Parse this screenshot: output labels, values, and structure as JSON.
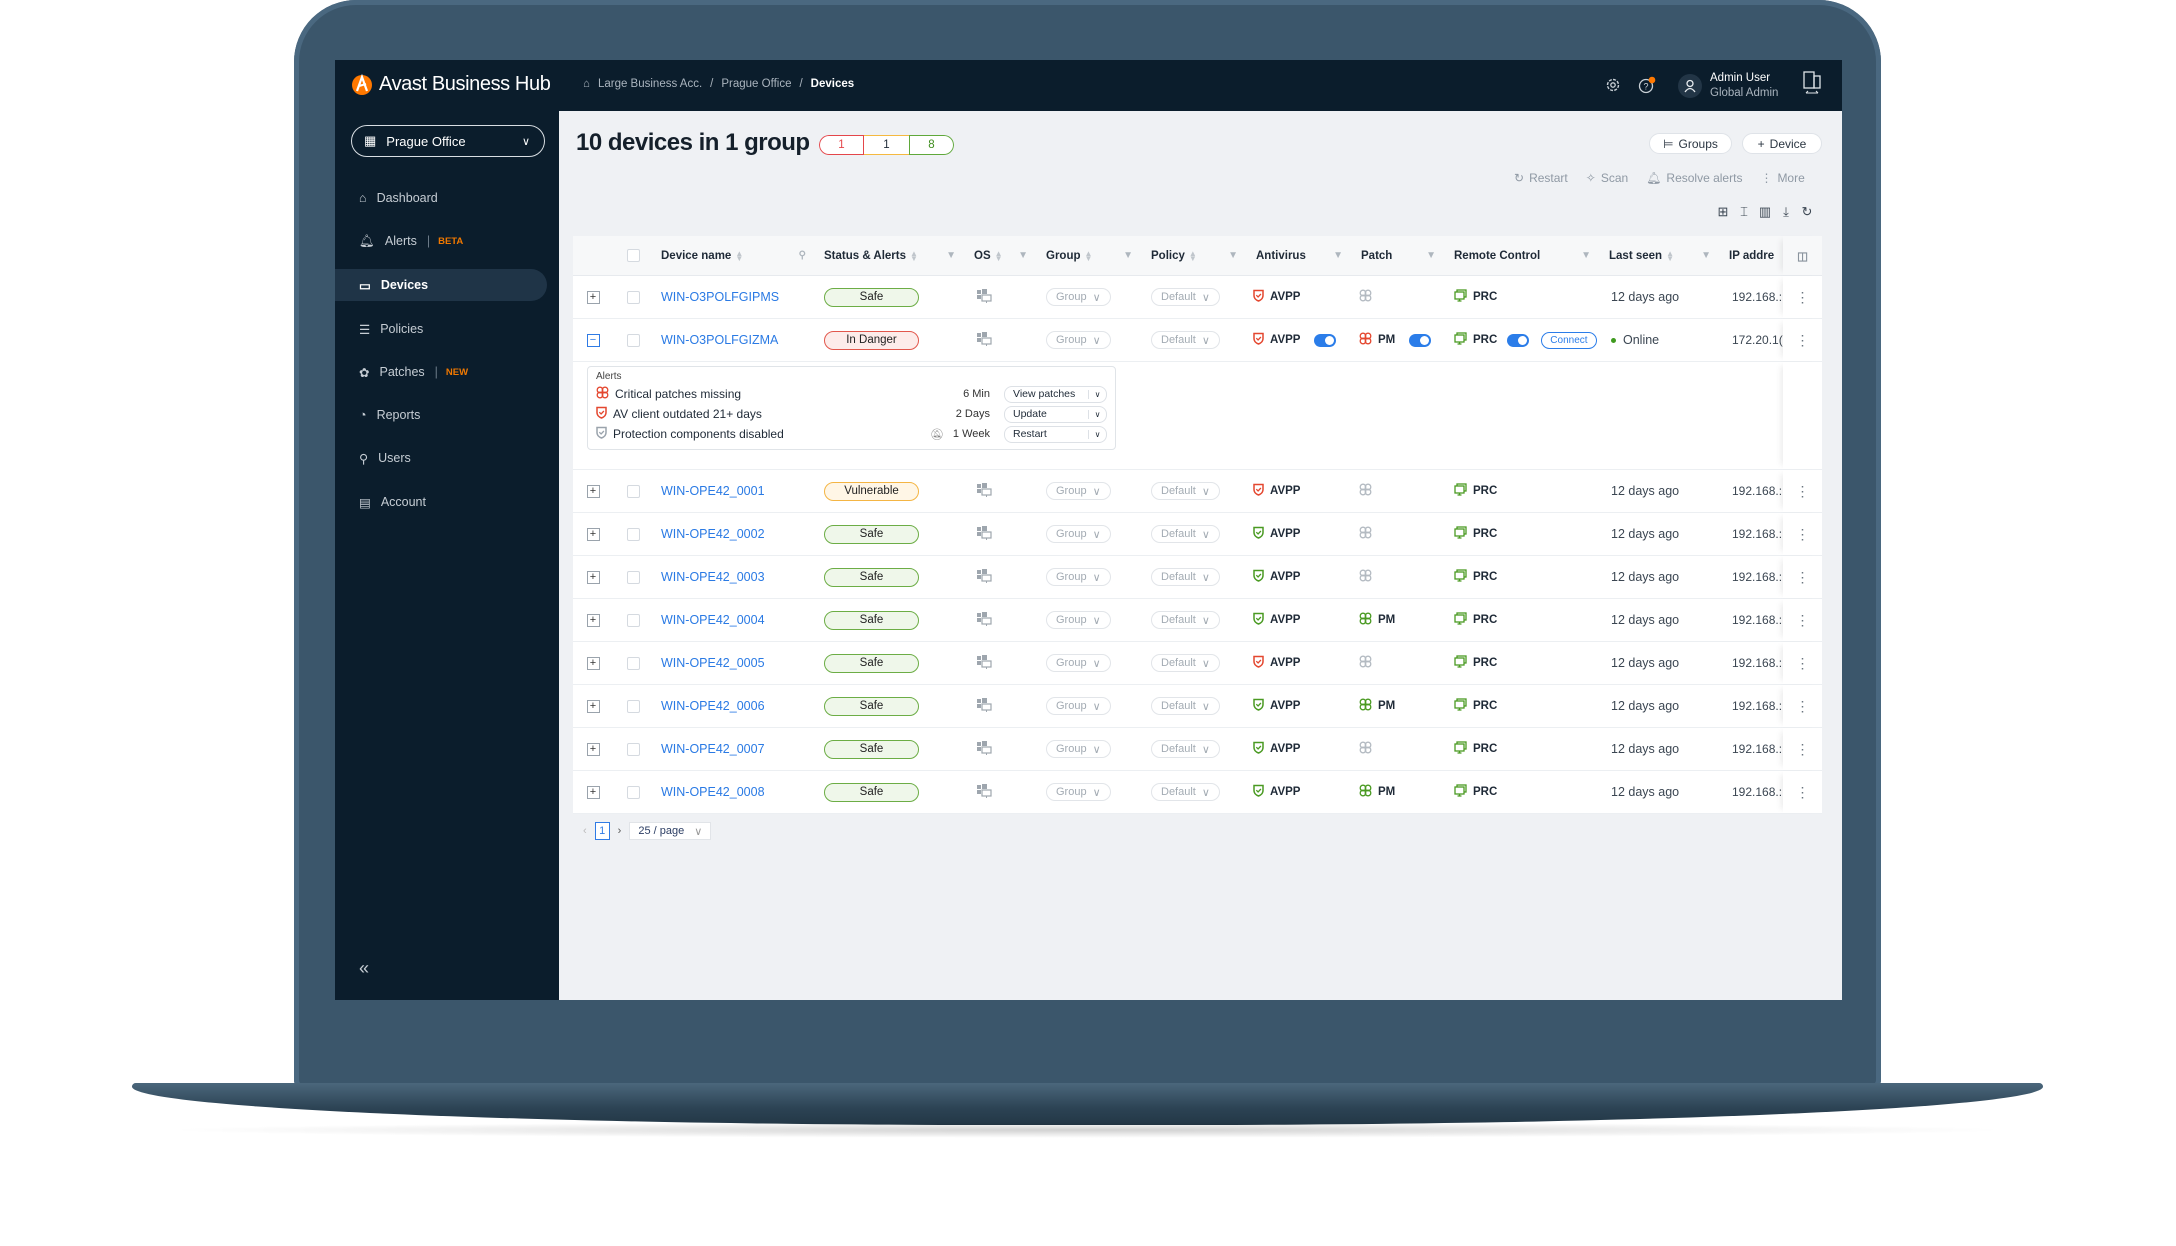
{
  "app": {
    "brand": "Avast Business Hub",
    "accent": "#ff7800"
  },
  "breadcrumb": [
    "Large Business Acc.",
    "Prague Office",
    "Devices"
  ],
  "user": {
    "name": "Admin User",
    "role": "Global Admin"
  },
  "sidebar": {
    "office": "Prague Office",
    "items": [
      {
        "label": "Dashboard",
        "icon": "home-icon"
      },
      {
        "label": "Alerts",
        "badge": "BETA",
        "icon": "bell-icon"
      },
      {
        "label": "Devices",
        "icon": "monitor-icon",
        "active": true
      },
      {
        "label": "Policies",
        "icon": "policies-icon"
      },
      {
        "label": "Patches",
        "badge": "NEW",
        "icon": "patch-icon"
      },
      {
        "label": "Reports",
        "icon": "pie-chart-icon"
      },
      {
        "label": "Users",
        "icon": "user-icon"
      },
      {
        "label": "Account",
        "icon": "account-icon"
      }
    ]
  },
  "header": {
    "title": "10 devices in 1 group",
    "counts": {
      "danger": "1",
      "vulnerable": "1",
      "safe": "8"
    }
  },
  "buttons": {
    "groups": "Groups",
    "device": "Device",
    "restart": "Restart",
    "scan": "Scan",
    "resolve": "Resolve alerts",
    "more": "More"
  },
  "columns": [
    "Device name",
    "Status & Alerts",
    "OS",
    "Group",
    "Policy",
    "Antivirus",
    "Patch",
    "Remote Control",
    "Last seen",
    "IP addre"
  ],
  "rows": [
    {
      "name": "WIN-O3POLFGIPMS",
      "status": "Safe",
      "group": "Group",
      "policy": "Default",
      "av": "AVPP",
      "av_color": "red",
      "patch": "",
      "patch_color": "grey",
      "rc": "PRC",
      "last_seen": "12 days ago",
      "ip": "192.168.:"
    },
    {
      "name": "WIN-O3POLFGIZMA",
      "status": "In Danger",
      "group": "Group",
      "policy": "Default",
      "av": "AVPP",
      "av_color": "red",
      "av_toggle": true,
      "patch": "PM",
      "patch_color": "red",
      "patch_toggle": true,
      "rc": "PRC",
      "rc_toggle": true,
      "connect": "Connect",
      "last_seen": "Online",
      "online": true,
      "ip": "172.20.1(",
      "expanded": true
    },
    {
      "name": "WIN-OPE42_0001",
      "status": "Vulnerable",
      "group": "Group",
      "policy": "Default",
      "av": "AVPP",
      "av_color": "red",
      "patch": "",
      "patch_color": "grey",
      "rc": "PRC",
      "last_seen": "12 days ago",
      "ip": "192.168.:"
    },
    {
      "name": "WIN-OPE42_0002",
      "status": "Safe",
      "group": "Group",
      "policy": "Default",
      "av": "AVPP",
      "av_color": "green",
      "patch": "",
      "patch_color": "grey",
      "rc": "PRC",
      "last_seen": "12 days ago",
      "ip": "192.168.:"
    },
    {
      "name": "WIN-OPE42_0003",
      "status": "Safe",
      "group": "Group",
      "policy": "Default",
      "av": "AVPP",
      "av_color": "green",
      "patch": "",
      "patch_color": "grey",
      "rc": "PRC",
      "last_seen": "12 days ago",
      "ip": "192.168.:"
    },
    {
      "name": "WIN-OPE42_0004",
      "status": "Safe",
      "group": "Group",
      "policy": "Default",
      "av": "AVPP",
      "av_color": "green",
      "patch": "PM",
      "patch_color": "green",
      "rc": "PRC",
      "last_seen": "12 days ago",
      "ip": "192.168.:"
    },
    {
      "name": "WIN-OPE42_0005",
      "status": "Safe",
      "group": "Group",
      "policy": "Default",
      "av": "AVPP",
      "av_color": "red",
      "patch": "",
      "patch_color": "grey",
      "rc": "PRC",
      "last_seen": "12 days ago",
      "ip": "192.168.:"
    },
    {
      "name": "WIN-OPE42_0006",
      "status": "Safe",
      "group": "Group",
      "policy": "Default",
      "av": "AVPP",
      "av_color": "green",
      "patch": "PM",
      "patch_color": "green",
      "rc": "PRC",
      "last_seen": "12 days ago",
      "ip": "192.168.:"
    },
    {
      "name": "WIN-OPE42_0007",
      "status": "Safe",
      "group": "Group",
      "policy": "Default",
      "av": "AVPP",
      "av_color": "green",
      "patch": "",
      "patch_color": "grey",
      "rc": "PRC",
      "last_seen": "12 days ago",
      "ip": "192.168.:"
    },
    {
      "name": "WIN-OPE42_0008",
      "status": "Safe",
      "group": "Group",
      "policy": "Default",
      "av": "AVPP",
      "av_color": "green",
      "patch": "PM",
      "patch_color": "green",
      "rc": "PRC",
      "last_seen": "12 days ago",
      "ip": "192.168.:"
    }
  ],
  "alerts": {
    "heading": "Alerts",
    "items": [
      {
        "text": "Critical patches missing",
        "time": "6 Min",
        "action": "View patches",
        "icon": "patch-icon",
        "muted": false
      },
      {
        "text": "AV client outdated 21+ days",
        "time": "2 Days",
        "action": "Update",
        "icon": "shield-icon",
        "muted": false
      },
      {
        "text": "Protection components disabled",
        "time": "1 Week",
        "action": "Restart",
        "icon": "shield-icon",
        "muted": true
      }
    ]
  },
  "pagination": {
    "page": "1",
    "per_page": "25 / page"
  },
  "colors": {
    "red": "#e4472f",
    "green": "#4a9a22",
    "grey": "#b4bbc2",
    "link": "#2a7ae4"
  }
}
